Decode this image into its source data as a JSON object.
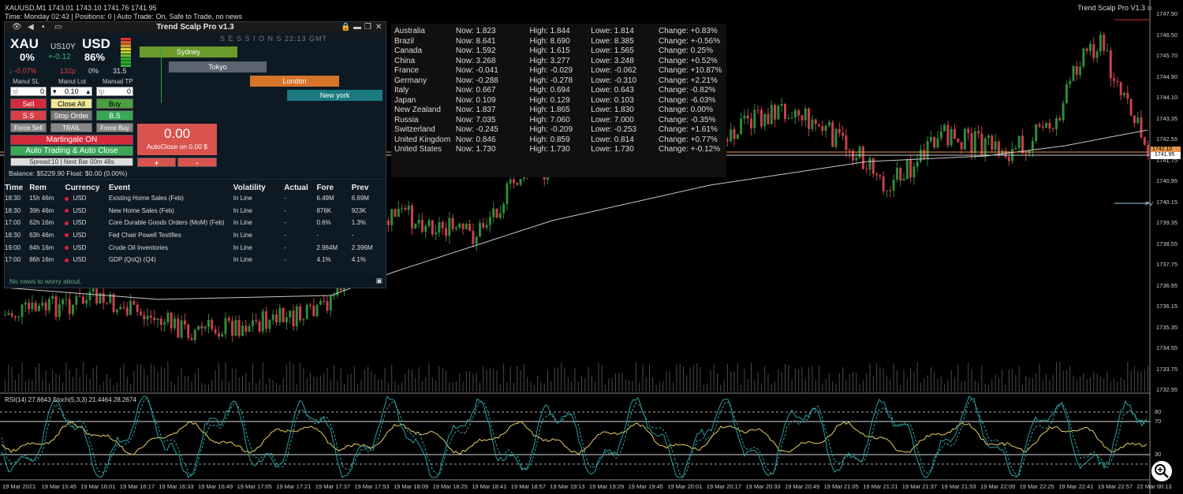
{
  "header": {
    "symbol_line": "XAUUSD,M1  1743.01 1743.10 1741.76 1741.95",
    "status_line": "Time: Monday 02:43 | Positions: 0 | Auto Trade: On, Safe to Trade, no news",
    "indicator_name": "Trend Scalp Pro V1.3"
  },
  "panel": {
    "title": "Trend Scalp Pro v1.3",
    "xau": {
      "label": "XAU",
      "pct": "0%",
      "change": "-0.07%"
    },
    "us10y": {
      "label": "US10Y",
      "value": "+-0.12",
      "pips": "132p"
    },
    "usd": {
      "label": "USD",
      "pct": "86%",
      "pct2": "0%",
      "value": "31.5"
    },
    "labels": {
      "sl": "Manul SL",
      "lot": "Manul Lot",
      "tp": "Manual TP"
    },
    "inputs": {
      "sl_placeholder": "sl",
      "sl_value": "0",
      "lot_value": "0.10",
      "tp_placeholder": "tp",
      "tp_value": "0"
    },
    "buttons": {
      "sell": "Sell",
      "close_all": "Close All",
      "buy": "Buy",
      "ss": "S.S",
      "stop_order": "Stop Order",
      "bs": "B.S",
      "force_sell": "Force Sell",
      "trail": "TRAIL",
      "force_buy": "Force Buy",
      "martingale": "Martingale ON",
      "auto_trading": "Auto Trading & Auto Close",
      "spread": "Spread:10 | Next Bar 00m 48s",
      "plus": "+",
      "minus": "-"
    },
    "autoclose": {
      "value": "0.00",
      "label": "AutoClose on 0.00 $"
    },
    "balance": "Balance: $5229.90  Float: $0.00 (0.00%)",
    "sessions": {
      "title": "S E S S I O N S   22:13 GMT",
      "items": [
        "Sydney",
        "Tokyo",
        "London",
        "New york"
      ]
    },
    "news": {
      "headers": [
        "Time",
        "Rem",
        "Currency",
        "Event",
        "Volatility",
        "Actual",
        "Fore",
        "Prev"
      ],
      "rows": [
        [
          "18:30",
          "15h 46m",
          "USD",
          "Existing Home Sales (Feb)",
          "In Line",
          "-",
          "6.49M",
          "6.69M"
        ],
        [
          "18:30",
          "39h 46m",
          "USD",
          "New Home Sales (Feb)",
          "In Line",
          "-",
          "876K",
          "923K"
        ],
        [
          "17:00",
          "62h 16m",
          "USD",
          "Core Durable Goods Orders (MoM) (Feb)",
          "In Line",
          "-",
          "0.6%",
          "1.3%"
        ],
        [
          "18:30",
          "63h 46m",
          "USD",
          "Fed Chair Powell Testifies",
          "In Line",
          "-",
          "-",
          "-"
        ],
        [
          "19:00",
          "64h 16m",
          "USD",
          "Crude Oil Inventories",
          "In Line",
          "-",
          "2.964M",
          "2.396M"
        ],
        [
          "17:00",
          "86h 16m",
          "USD",
          "GDP (QoQ) (Q4)",
          "In Line",
          "-",
          "4.1%",
          "4.1%"
        ]
      ],
      "footer": "No news to worry about."
    }
  },
  "markets": [
    [
      "Australia",
      "Now: 1.823",
      "High: 1.844",
      "Lowe: 1.814",
      "Change: +0.83%",
      "pos"
    ],
    [
      "Brazil",
      "Now: 8.641",
      "High: 8.690",
      "Lowe: 8.385",
      "Change: +-0.56%",
      "pos"
    ],
    [
      "Canada",
      "Now: 1.592",
      "High: 1.615",
      "Lowe: 1.565",
      "Change: 0.25%",
      "neg"
    ],
    [
      "China",
      "Now: 3.268",
      "High: 3.277",
      "Lowe: 3.248",
      "Change: +0.52%",
      "pos"
    ],
    [
      "France",
      "Now: -0.041",
      "High: -0.029",
      "Lowe: -0.062",
      "Change: +10.87%",
      "pos"
    ],
    [
      "Germany",
      "Now: -0.288",
      "High: -0.278",
      "Lowe: -0.310",
      "Change: +2.21%",
      "pos"
    ],
    [
      "Italy",
      "Now: 0.667",
      "High: 0.694",
      "Lowe: 0.643",
      "Change: -0.82%",
      "neg"
    ],
    [
      "Japan",
      "Now: 0.109",
      "High: 0.129",
      "Lowe: 0.103",
      "Change: -6.03%",
      "neg"
    ],
    [
      "New Zealand",
      "Now: 1.837",
      "High: 1.865",
      "Lowe: 1.830",
      "Change: 0.00%",
      "neg"
    ],
    [
      "Russia",
      "Now: 7.035",
      "High: 7.060",
      "Lowe: 7.000",
      "Change: -0.35%",
      "neg"
    ],
    [
      "Switzerland",
      "Now: -0.245",
      "High: -0.209",
      "Lowe: -0.253",
      "Change: +1.61%",
      "pos"
    ],
    [
      "United Kingdom",
      "Now: 0.846",
      "High: 0.859",
      "Lowe: 0.814",
      "Change: +0.77%",
      "pos"
    ],
    [
      "United States",
      "Now: 1.730",
      "High: 1.730",
      "Lowe: 1.730",
      "Change: +-0.12%",
      "pos"
    ]
  ],
  "price_axis": [
    "1747.90",
    "1746.50",
    "1745.70",
    "1744.90",
    "1744.10",
    "1743.35",
    "1742.55",
    "1741.75",
    "1740.95",
    "1740.15",
    "1739.35",
    "1738.55",
    "1737.75",
    "1736.95",
    "1736.15",
    "1735.35",
    "1734.55",
    "1733.75",
    "1732.95"
  ],
  "price_tags": {
    "bid": "1741.95",
    "ask": "1742.10",
    "pivot": "PV"
  },
  "rsi": {
    "label": "RSI(14) 27.8643  Stoch(5,3,3) 21.4464 28.2674",
    "levels": [
      "80",
      "70",
      "30"
    ]
  },
  "time_axis": [
    "19 Mar 2021",
    "19 Mar 15:45",
    "19 Mar 16:01",
    "19 Mar 16:17",
    "19 Mar 16:33",
    "19 Mar 16:49",
    "19 Mar 17:05",
    "19 Mar 17:21",
    "19 Mar 17:37",
    "19 Mar 17:53",
    "19 Mar 18:09",
    "19 Mar 18:25",
    "19 Mar 18:41",
    "19 Mar 18:57",
    "19 Mar 19:13",
    "19 Mar 19:29",
    "19 Mar 19:45",
    "19 Mar 20:01",
    "19 Mar 20:17",
    "19 Mar 20:33",
    "19 Mar 20:49",
    "19 Mar 21:05",
    "19 Mar 21:21",
    "19 Mar 21:37",
    "19 Mar 21:53",
    "19 Mar 22:09",
    "19 Mar 22:25",
    "19 Mar 22:41",
    "19 Mar 22:57",
    "22 Mar 00:13"
  ],
  "colors": {
    "up": "#2e8b3a",
    "down": "#c8404e",
    "sessions": [
      "#6a9a2a",
      "#5a6470",
      "#d8742a",
      "#1a7a80"
    ],
    "autoclose": "#d9534f"
  }
}
